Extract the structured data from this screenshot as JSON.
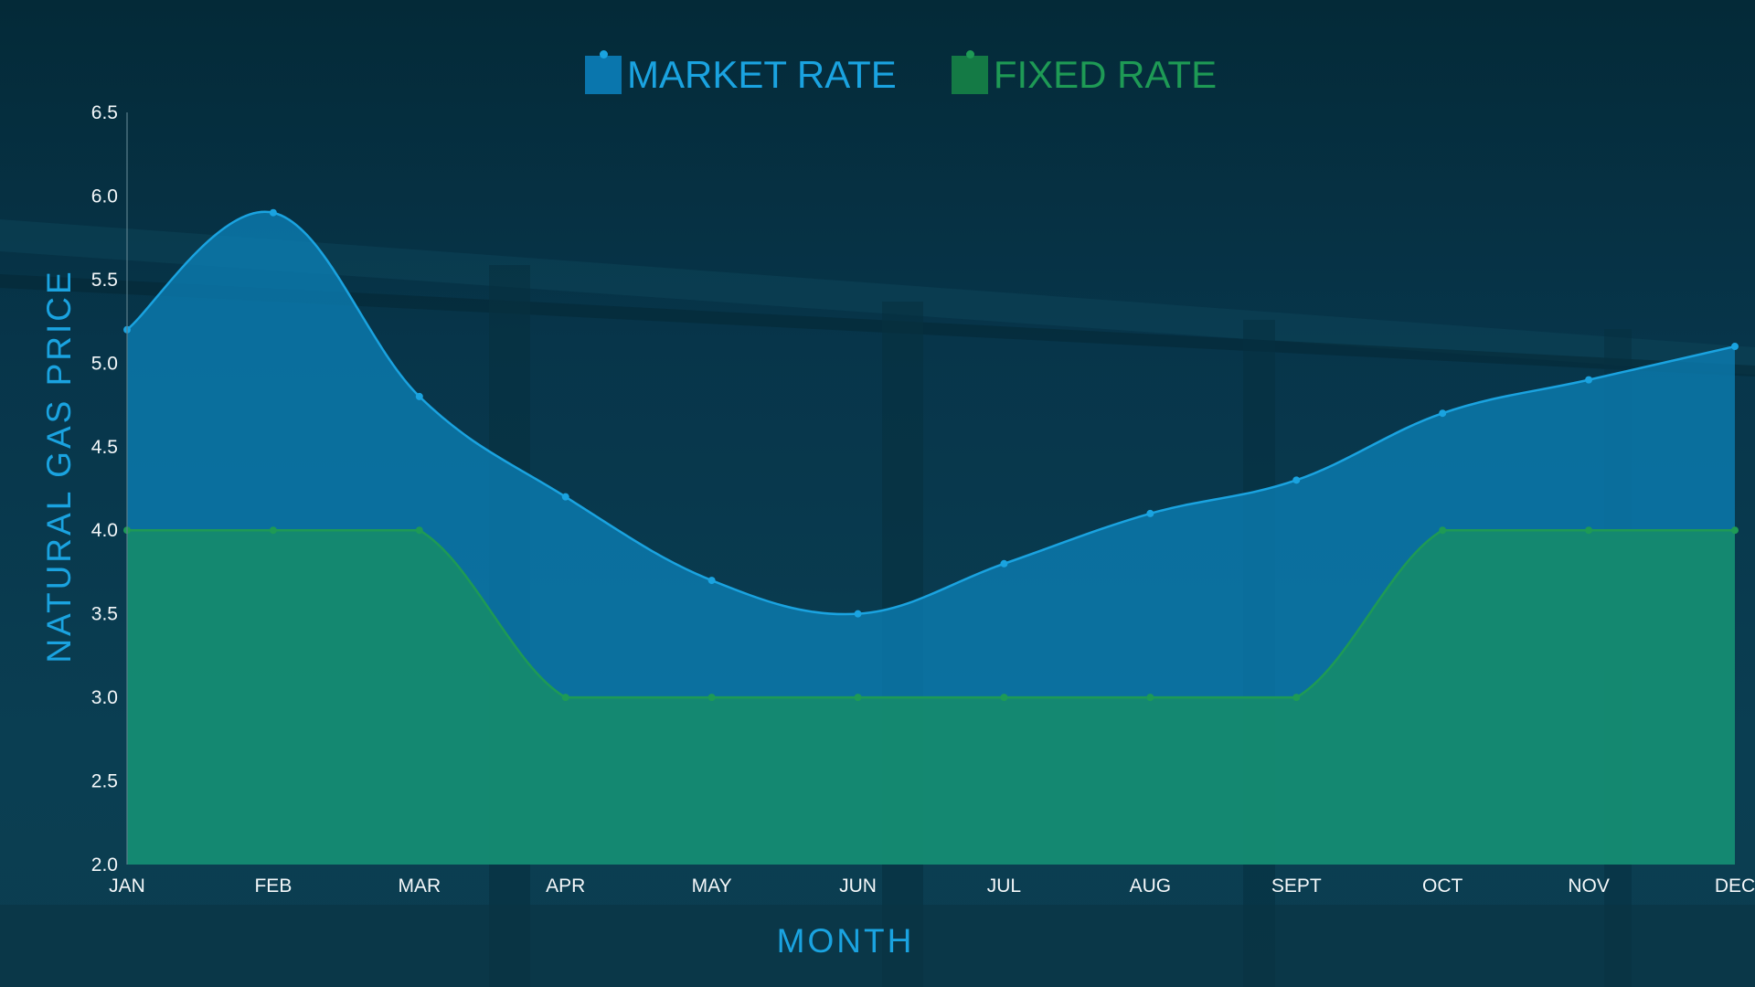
{
  "colors": {
    "background": "#05303f",
    "market_line": "#1aa3e0",
    "market_fill": "#0b7fb5",
    "fixed_line": "#1e9a55",
    "fixed_fill": "#168a6c",
    "axis_title": "#1aa3e0",
    "tick_text": "#f4f8fa"
  },
  "legend": {
    "items": [
      {
        "label": "MARKET RATE",
        "color": "#1aa3e0",
        "swatch": "#0a76ad"
      },
      {
        "label": "FIXED RATE",
        "color": "#1e9a55",
        "swatch": "#147a45"
      }
    ]
  },
  "chart_data": {
    "type": "area",
    "categories": [
      "JAN",
      "FEB",
      "MAR",
      "APR",
      "MAY",
      "JUN",
      "JUL",
      "AUG",
      "SEPT",
      "OCT",
      "NOV",
      "DEC"
    ],
    "series": [
      {
        "name": "MARKET RATE",
        "values": [
          5.2,
          5.9,
          4.8,
          4.2,
          3.7,
          3.5,
          3.8,
          4.1,
          4.3,
          4.7,
          4.9,
          5.1
        ]
      },
      {
        "name": "FIXED RATE",
        "values": [
          4.0,
          4.0,
          4.0,
          3.0,
          3.0,
          3.0,
          3.0,
          3.0,
          3.0,
          4.0,
          4.0,
          4.0
        ]
      }
    ],
    "xlabel": "MONTH",
    "ylabel": "NATURAL GAS PRICE",
    "ylim": [
      2.0,
      6.5
    ],
    "yticks": [
      "2.0",
      "2.5",
      "3.0",
      "3.5",
      "4.0",
      "4.5",
      "5.0",
      "5.5",
      "6.0",
      "6.5"
    ],
    "grid": false,
    "legend_position": "top-center"
  }
}
